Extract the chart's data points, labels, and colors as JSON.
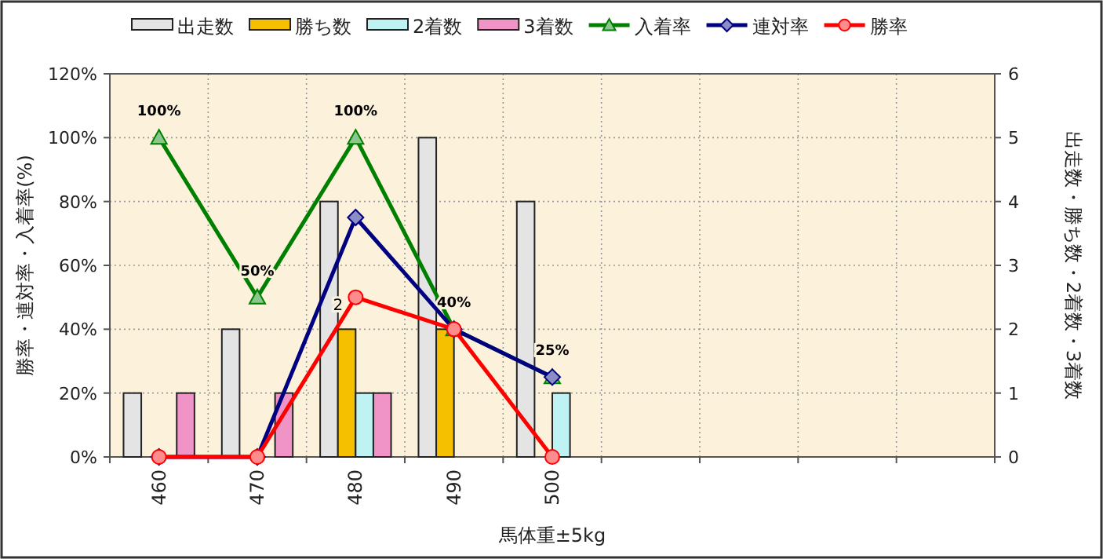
{
  "chart_data": {
    "type": "bar",
    "xlabel": "馬体重±5kg",
    "ylabel": "勝率・連対率・入着率(%)",
    "y2label": "出走数・勝ち数・2着数・3着数",
    "categories": [
      "460",
      "470",
      "480",
      "490",
      "500",
      null,
      null,
      null,
      null
    ],
    "ylim": [
      0,
      120
    ],
    "yticks": [
      {
        "value": 0,
        "label": "0%"
      },
      {
        "value": 20,
        "label": "20%"
      },
      {
        "value": 40,
        "label": "40%"
      },
      {
        "value": 60,
        "label": "60%"
      },
      {
        "value": 80,
        "label": "80%"
      },
      {
        "value": 100,
        "label": "100%"
      },
      {
        "value": 120,
        "label": "120%"
      }
    ],
    "y2lim": [
      0,
      6
    ],
    "y2ticks": [
      0,
      1,
      2,
      3,
      4,
      5,
      6
    ],
    "grid": true,
    "legend": "top",
    "series": [
      {
        "name": "出走数",
        "axis": "y2",
        "color": "#e4e4e4",
        "values": [
          1,
          2,
          4,
          5,
          4,
          null,
          null,
          null,
          null
        ]
      },
      {
        "name": "勝ち数",
        "axis": "y2",
        "color": "#f5c000",
        "values": [
          0,
          0,
          2,
          2,
          0,
          null,
          null,
          null,
          null
        ]
      },
      {
        "name": "2着数",
        "axis": "y2",
        "color": "#bff2f2",
        "values": [
          0,
          0,
          1,
          0,
          1,
          null,
          null,
          null,
          null
        ]
      },
      {
        "name": "3着数",
        "axis": "y2",
        "color": "#f094c8",
        "values": [
          1,
          1,
          1,
          0,
          0,
          null,
          null,
          null,
          null
        ]
      },
      {
        "name": "入着率",
        "type": "line",
        "axis": "y",
        "color": "#008000",
        "marker": "triangle",
        "values": [
          100,
          50,
          100,
          40,
          25,
          null,
          null,
          null,
          null
        ],
        "value_labels": [
          "100%",
          "50%",
          "100%",
          "40%",
          "25%",
          null,
          null,
          null,
          null
        ]
      },
      {
        "name": "連対率",
        "type": "line",
        "axis": "y",
        "color": "#000080",
        "marker": "diamond",
        "values": [
          0,
          0,
          75,
          40,
          25,
          null,
          null,
          null,
          null
        ]
      },
      {
        "name": "勝率",
        "type": "line",
        "axis": "y",
        "color": "#ff0000",
        "marker": "circle",
        "values": [
          0,
          0,
          50,
          40,
          0,
          null,
          null,
          null,
          null
        ]
      }
    ],
    "annotations": [
      {
        "text": "2",
        "x": "480",
        "y": 50
      }
    ]
  }
}
